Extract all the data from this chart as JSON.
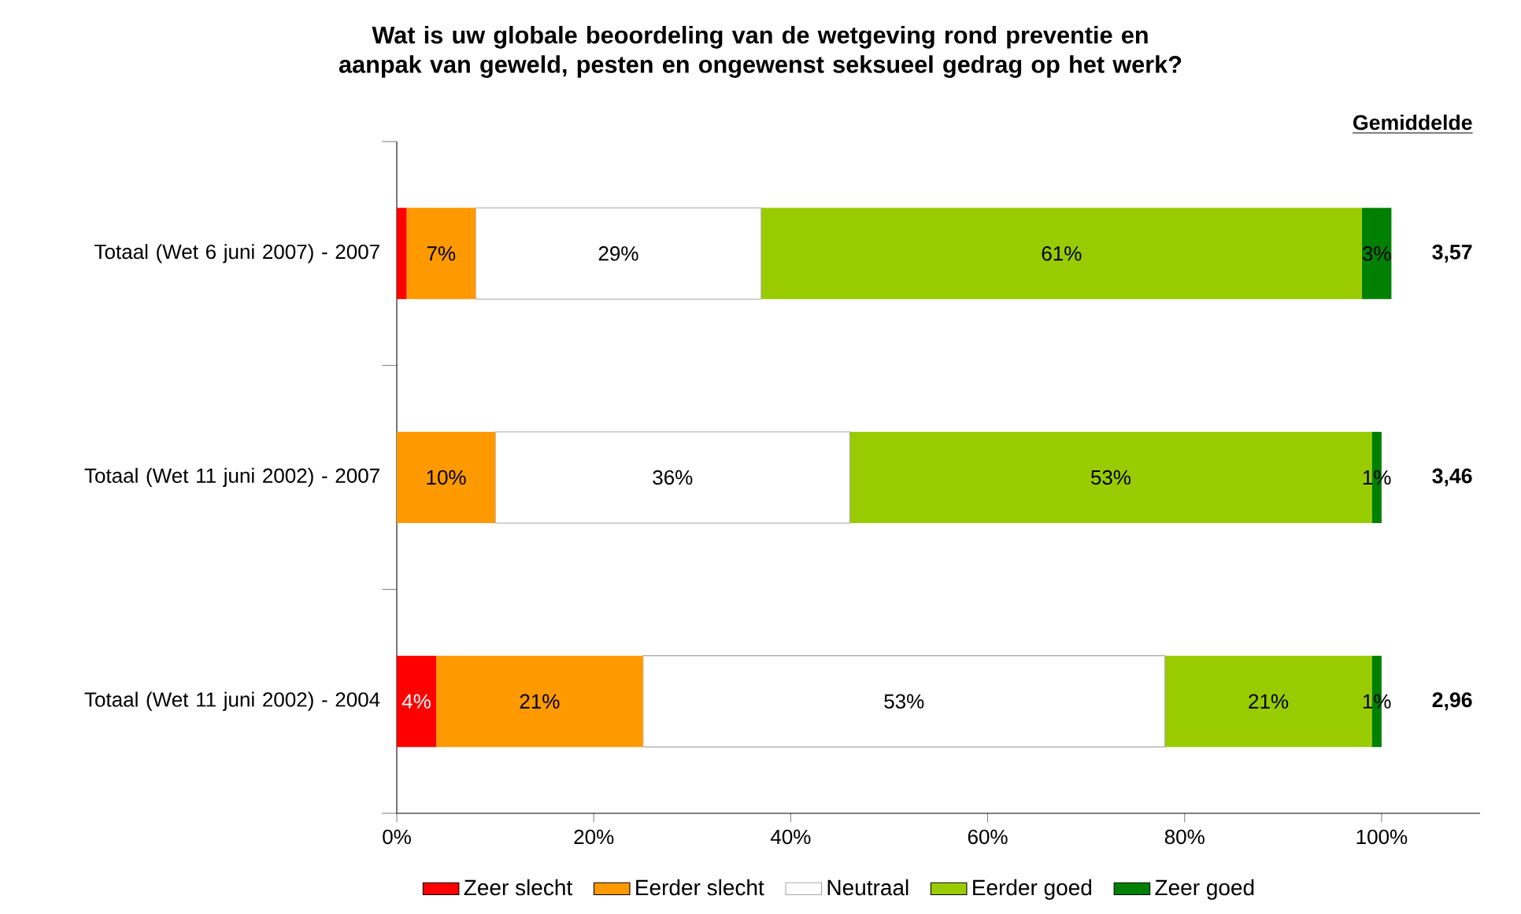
{
  "chart_data": {
    "type": "bar",
    "orientation": "horizontal",
    "stacked": true,
    "title": "Wat is uw globale beoordeling van de wetgeving rond preventie en aanpak van geweld, pesten en ongewenst seksueel gedrag op het werk?",
    "categories": [
      "Totaal (Wet 6 juni 2007) - 2007",
      "Totaal (Wet 11 juni 2002) - 2007",
      "Totaal (Wet 11 juni 2002) - 2004"
    ],
    "series": [
      {
        "name": "Zeer slecht",
        "color": "#ff0000",
        "values": [
          1,
          0,
          4
        ],
        "value_labels": [
          null,
          null,
          "4%"
        ]
      },
      {
        "name": "Eerder slecht",
        "color": "#ff9900",
        "values": [
          7,
          10,
          21
        ],
        "value_labels": [
          "7%",
          "10%",
          "21%"
        ]
      },
      {
        "name": "Neutraal",
        "color": "#ffffff",
        "values": [
          29,
          36,
          53
        ],
        "value_labels": [
          "29%",
          "36%",
          "53%"
        ]
      },
      {
        "name": "Eerder goed",
        "color": "#99cc00",
        "values": [
          61,
          53,
          21
        ],
        "value_labels": [
          "61%",
          "53%",
          "21%"
        ]
      },
      {
        "name": "Zeer goed",
        "color": "#008000",
        "values": [
          3,
          1,
          1
        ],
        "value_labels": [
          "3%",
          "1%",
          "1%"
        ]
      }
    ],
    "xlim": [
      0,
      110
    ],
    "xticks": [
      {
        "value": 0,
        "label": "0%"
      },
      {
        "value": 20,
        "label": "20%"
      },
      {
        "value": 40,
        "label": "40%"
      },
      {
        "value": 60,
        "label": "60%"
      },
      {
        "value": 80,
        "label": "80%"
      },
      {
        "value": 100,
        "label": "100%"
      }
    ],
    "annotations": [
      "Gemiddelde",
      "3,57",
      "3,46",
      "2,96"
    ],
    "legend": "bottom",
    "grid": false
  }
}
